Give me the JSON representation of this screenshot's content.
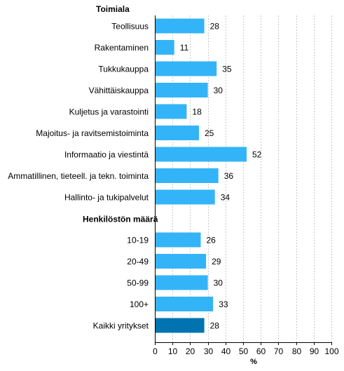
{
  "chart_data": {
    "type": "bar",
    "orientation": "horizontal",
    "xlabel": "%",
    "xlim": [
      0,
      100
    ],
    "xticks": [
      "0",
      "10",
      "20",
      "30",
      "40",
      "50",
      "60",
      "70",
      "80",
      "90",
      "100"
    ],
    "grid": "vertical dashed",
    "legend": "none",
    "colors": {
      "bar": "#33b4f8",
      "total_bar": "#0073b0"
    },
    "groups": [
      {
        "label": "Toimiala",
        "rows": [
          {
            "label": "Teollisuus",
            "value": 28
          },
          {
            "label": "Rakentaminen",
            "value": 11
          },
          {
            "label": "Tukkukauppa",
            "value": 35
          },
          {
            "label": "Vähittäiskauppa",
            "value": 30
          },
          {
            "label": "Kuljetus ja varastointi",
            "value": 18
          },
          {
            "label": "Majoitus- ja ravitsemistoiminta",
            "value": 25
          },
          {
            "label": "Informaatio ja viestintä",
            "value": 52
          },
          {
            "label": "Ammatillinen, tieteell. ja tekn. toiminta",
            "value": 36
          },
          {
            "label": "Hallinto- ja tukipalvelut",
            "value": 34
          }
        ]
      },
      {
        "label": "Henkilöstön määrä",
        "rows": [
          {
            "label": "10-19",
            "value": 26
          },
          {
            "label": "20-49",
            "value": 29
          },
          {
            "label": "50-99",
            "value": 30
          },
          {
            "label": "100+",
            "value": 33
          }
        ]
      },
      {
        "label": "",
        "rows": [
          {
            "label": "Kaikki yritykset",
            "value": 28,
            "highlight": true
          }
        ]
      }
    ]
  }
}
